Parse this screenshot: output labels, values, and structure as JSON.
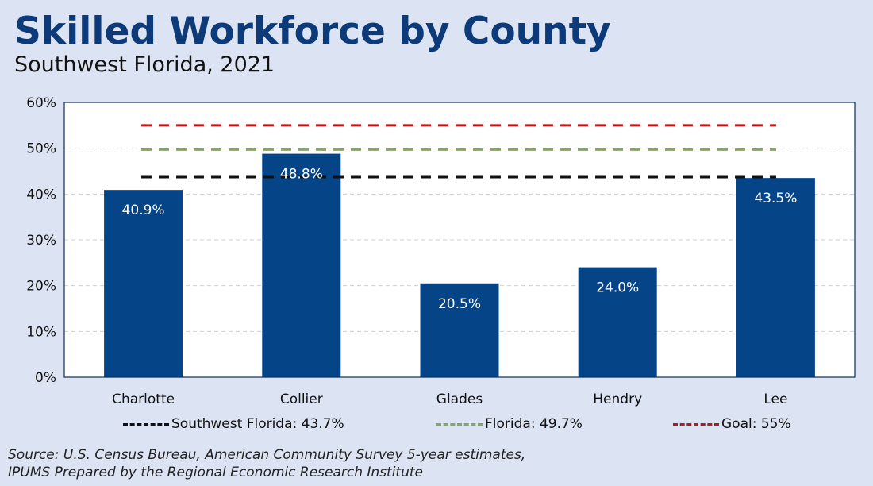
{
  "title": "Skilled Workforce by County",
  "subtitle": "Southwest Florida, 2021",
  "source_line1": "Source: U.S. Census Bureau, American Community Survey 5-year estimates,",
  "source_line2": "IPUMS Prepared by the Regional Economic Research Institute",
  "chart_data": {
    "type": "bar",
    "categories": [
      "Charlotte",
      "Collier",
      "Glades",
      "Hendry",
      "Lee"
    ],
    "values": [
      40.9,
      48.8,
      20.5,
      24.0,
      43.5
    ],
    "value_labels": [
      "40.9%",
      "48.8%",
      "20.5%",
      "24.0%",
      "43.5%"
    ],
    "ylim": [
      0,
      60
    ],
    "yticks": [
      0,
      10,
      20,
      30,
      40,
      50,
      60
    ],
    "ytick_labels": [
      "0%",
      "10%",
      "20%",
      "30%",
      "40%",
      "50%",
      "60%"
    ],
    "grid": true,
    "legend_position": "bottom",
    "bar_color": "#064488",
    "reference_lines": [
      {
        "name": "Southwest Florida: 43.7%",
        "value": 43.7,
        "color": "#111111",
        "style": "dashed"
      },
      {
        "name": "Florida: 49.7%",
        "value": 49.7,
        "color": "#82a85a",
        "style": "dashed"
      },
      {
        "name": "Goal: 55%",
        "value": 55,
        "color": "#b01c1c",
        "style": "dashed"
      }
    ]
  }
}
